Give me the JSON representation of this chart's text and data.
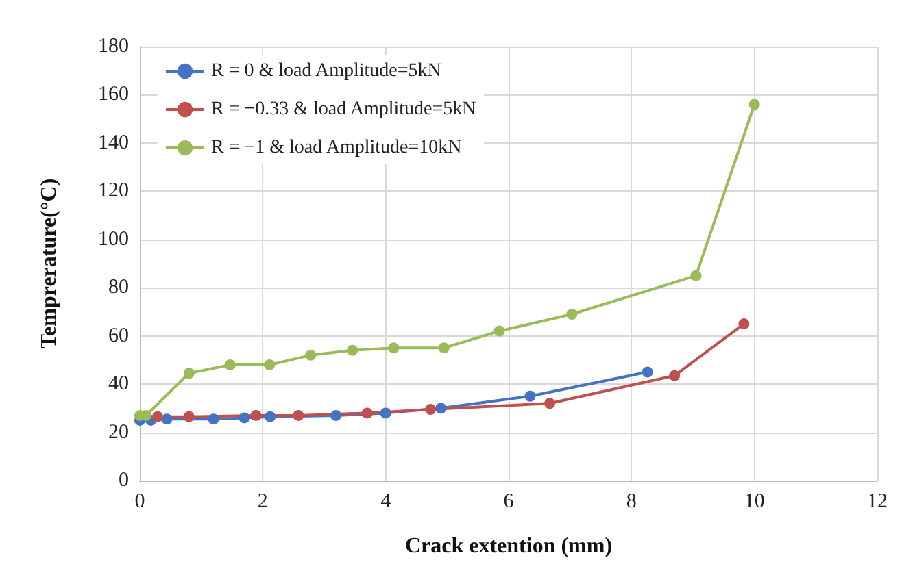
{
  "chart_data": {
    "type": "line",
    "xlabel": "Crack extention (mm)",
    "ylabel": "Temprerature(°C)",
    "xlim": [
      0,
      12
    ],
    "xticks": [
      0,
      2,
      4,
      6,
      8,
      10,
      12
    ],
    "ylim": [
      0,
      180
    ],
    "yticks": [
      0,
      20,
      40,
      60,
      80,
      100,
      120,
      140,
      160,
      180
    ],
    "grid": true,
    "legend": "top left",
    "marker": "circle",
    "line_style": "solid",
    "series": [
      {
        "name": "R = 0 & load Amplitude=5kN",
        "color": "#4472c4",
        "x": [
          0,
          0.18,
          0.44,
          0.8,
          1.2,
          1.7,
          2.12,
          3.19,
          4.0,
          4.9,
          6.35,
          8.26
        ],
        "values": [
          25,
          25,
          25.5,
          null,
          25.5,
          26,
          26.5,
          27,
          28,
          30,
          35,
          45
        ]
      },
      {
        "name": "R = −0.33 & load Amplitude=5kN",
        "color": "#c0504d",
        "x": [
          0.29,
          0.8,
          1.89,
          2.58,
          3.7,
          4.73,
          6.67,
          8.7,
          9.83
        ],
        "values": [
          26.5,
          26.5,
          27,
          27,
          28,
          29.5,
          32,
          43.5,
          65
        ]
      },
      {
        "name": "R = −1 & load Amplitude=10kN",
        "color": "#9bbb59",
        "x": [
          0,
          0.1,
          0.8,
          1.47,
          2.11,
          2.78,
          3.46,
          4.13,
          4.95,
          5.85,
          7.03,
          9.05,
          10
        ],
        "values": [
          27,
          27,
          44.5,
          48,
          48,
          52,
          54,
          55,
          55,
          62,
          69,
          85,
          156
        ]
      }
    ]
  }
}
